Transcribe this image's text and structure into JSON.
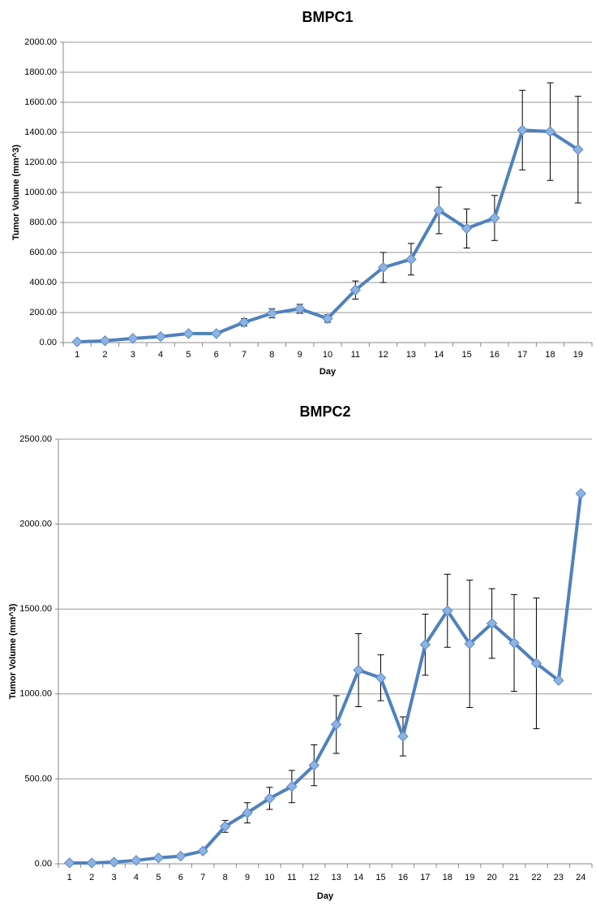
{
  "chart_data": [
    {
      "type": "line",
      "title": "BMPC1",
      "x_label": "Day",
      "y_label": "Tumor Volume (mm^3)",
      "categories": [
        "1",
        "2",
        "3",
        "4",
        "5",
        "6",
        "7",
        "8",
        "9",
        "10",
        "11",
        "12",
        "13",
        "14",
        "15",
        "16",
        "17",
        "18",
        "19"
      ],
      "series": [
        {
          "color": "#4f81bd",
          "values": [
            5,
            12,
            28,
            40,
            60,
            60,
            135,
            195,
            225,
            160,
            350,
            500,
            555,
            880,
            760,
            830,
            1415,
            1405,
            1285
          ],
          "errors": [
            5,
            5,
            8,
            10,
            10,
            10,
            25,
            30,
            30,
            25,
            60,
            100,
            105,
            155,
            130,
            150,
            265,
            325,
            355
          ]
        }
      ],
      "ylim": [
        0,
        2000
      ],
      "yticks": [
        {
          "value": 0,
          "label": "0.00"
        },
        {
          "value": 200,
          "label": "200.00"
        },
        {
          "value": 400,
          "label": "400.00"
        },
        {
          "value": 600,
          "label": "600.00"
        },
        {
          "value": 800,
          "label": "800.00"
        },
        {
          "value": 1000,
          "label": "1000.00"
        },
        {
          "value": 1200,
          "label": "1200.00"
        },
        {
          "value": 1400,
          "label": "1400.00"
        },
        {
          "value": 1600,
          "label": "1600.00"
        },
        {
          "value": 1800,
          "label": "1800.00"
        },
        {
          "value": 2000,
          "label": "2000.00"
        }
      ],
      "grid": true
    },
    {
      "type": "line",
      "title": "BMPC2",
      "x_label": "Day",
      "y_label": "Tumor Volume (mm^3)",
      "categories": [
        "1",
        "2",
        "3",
        "4",
        "5",
        "6",
        "7",
        "8",
        "9",
        "10",
        "11",
        "12",
        "13",
        "14",
        "15",
        "16",
        "17",
        "18",
        "19",
        "20",
        "21",
        "22",
        "23",
        "24"
      ],
      "series": [
        {
          "color": "#4f81bd",
          "values": [
            5,
            5,
            10,
            20,
            35,
            45,
            75,
            220,
            300,
            385,
            455,
            580,
            820,
            1140,
            1095,
            750,
            1290,
            1490,
            1295,
            1415,
            1300,
            1180,
            1080,
            2180
          ],
          "errors": [
            5,
            5,
            5,
            5,
            10,
            10,
            10,
            35,
            60,
            65,
            95,
            120,
            170,
            215,
            135,
            115,
            180,
            215,
            375,
            205,
            285,
            385,
            null,
            null
          ]
        }
      ],
      "ylim": [
        0,
        2500
      ],
      "yticks": [
        {
          "value": 0,
          "label": "0.00"
        },
        {
          "value": 500,
          "label": "500.00"
        },
        {
          "value": 1000,
          "label": "1000.00"
        },
        {
          "value": 1500,
          "label": "1500.00"
        },
        {
          "value": 2000,
          "label": "2000.00"
        },
        {
          "value": 2500,
          "label": "2500.00"
        }
      ],
      "grid": true
    }
  ]
}
